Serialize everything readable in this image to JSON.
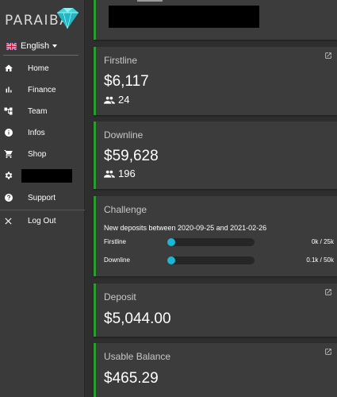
{
  "sidebar": {
    "logo_text": "PARAIBA",
    "language": "English",
    "items": [
      {
        "label": "Home",
        "icon": "home-icon"
      },
      {
        "label": "Finance",
        "icon": "bar-chart-icon"
      },
      {
        "label": "Team",
        "icon": "org-chart-icon"
      },
      {
        "label": "Infos",
        "icon": "info-icon"
      },
      {
        "label": "Shop",
        "icon": "cart-icon"
      },
      {
        "label": "",
        "icon": "gear-icon"
      },
      {
        "label": "Support",
        "icon": "help-icon"
      },
      {
        "label": "Log Out",
        "icon": "close-icon"
      }
    ]
  },
  "cards": {
    "firstline": {
      "title": "Firstline",
      "amount": "$6,117",
      "members": "24"
    },
    "downline": {
      "title": "Downline",
      "amount": "$59,628",
      "members": "196"
    },
    "challenge": {
      "title": "Challenge",
      "subtitle": "New deposits between 2020-09-25 and 2021-02-26",
      "rows": [
        {
          "label": "Firstline",
          "value": "0k / 25k",
          "progress": 0
        },
        {
          "label": "Downline",
          "value": "0.1k / 50k",
          "progress": 0.002
        }
      ]
    },
    "deposit": {
      "title": "Deposit",
      "amount": "$5,044.00"
    },
    "usable": {
      "title": "Usable Balance",
      "amount": "$465.29"
    }
  },
  "colors": {
    "accent_border": "#2a9d2e",
    "progress": "#19b8d6",
    "sidebar_bg": "#3a3a3a",
    "card_bg": "#3c3c3c"
  }
}
